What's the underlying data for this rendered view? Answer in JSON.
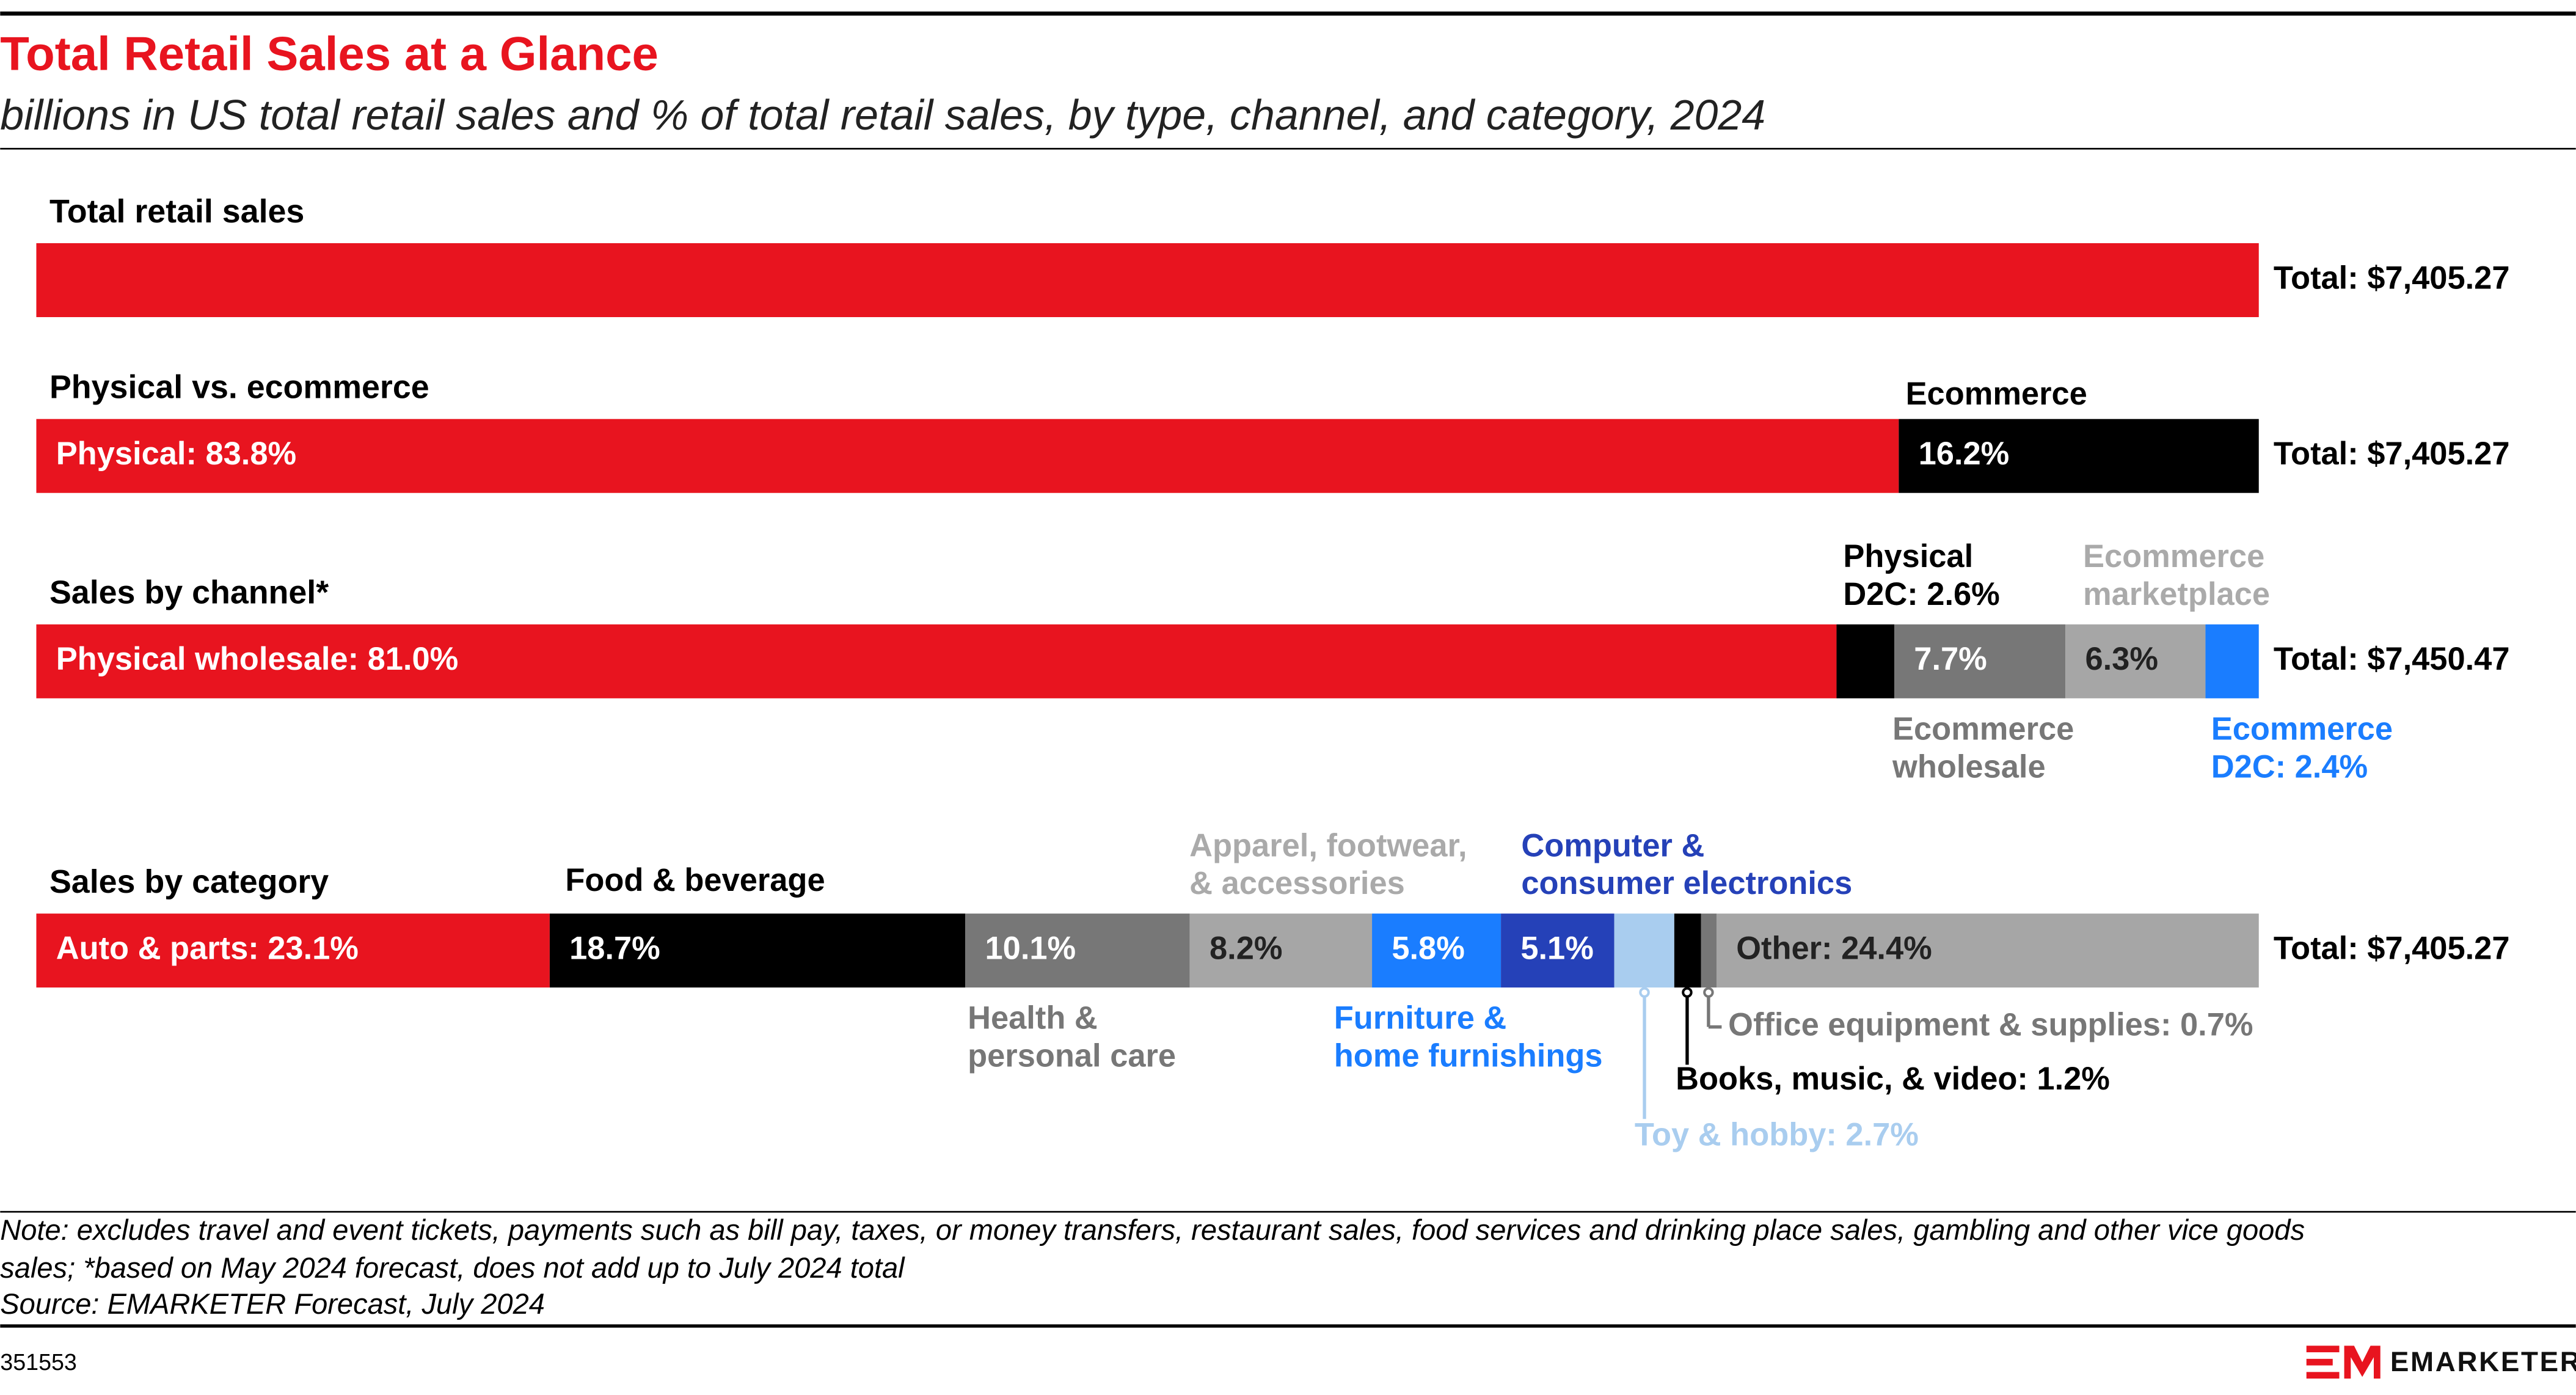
{
  "title": "Total Retail Sales at a Glance",
  "subtitle": "billions in US total retail sales and % of total retail sales, by type, channel, and category, 2024",
  "chart_data": [
    {
      "type": "stacked_bar",
      "title": "Total retail sales",
      "xlim": [
        0,
        100
      ],
      "total": {
        "value": 7405.27,
        "label": "Total: $7,405.27"
      },
      "series": [
        {
          "color": "#e8141f",
          "values": [
            100
          ]
        }
      ]
    },
    {
      "type": "stacked_bar",
      "title": "Physical vs. ecommerce",
      "xlim": [
        0,
        100
      ],
      "total": {
        "value": 7405.27,
        "label": "Total: $7,405.27"
      },
      "series": [
        {
          "color": "#e8141f",
          "values": [
            83.8
          ],
          "value_labels": [
            "Physical: 83.8%"
          ]
        },
        {
          "name": [
            "Ecommerce"
          ],
          "color": "#000000",
          "values": [
            16.2
          ],
          "value_labels": [
            "16.2%"
          ]
        }
      ]
    },
    {
      "type": "stacked_bar",
      "title": "Sales by channel*",
      "xlim": [
        0,
        100
      ],
      "total": {
        "value": 7450.47,
        "label": "Total: $7,450.47"
      },
      "series": [
        {
          "color": "#e8141f",
          "values": [
            81.0
          ],
          "value_labels": [
            "Physical wholesale: 81.0%"
          ]
        },
        {
          "color": "#000000",
          "values": [
            2.6
          ],
          "value_labels": [
            [
              "Physical",
              "D2C: 2.6%"
            ]
          ]
        },
        {
          "name": [
            "Ecommerce",
            "wholesale"
          ],
          "color": "#777777",
          "values": [
            7.7
          ],
          "value_labels": [
            "7.7%"
          ]
        },
        {
          "name": [
            "Ecommerce",
            "marketplace"
          ],
          "color": "#a6a6a6",
          "values": [
            6.3
          ],
          "value_labels": [
            "6.3%"
          ]
        },
        {
          "color": "#1a7dff",
          "values": [
            2.4
          ],
          "value_labels": [
            [
              "Ecommerce",
              "D2C: 2.4%"
            ]
          ]
        }
      ]
    },
    {
      "type": "stacked_bar",
      "title": "Sales by category",
      "xlim": [
        0,
        100
      ],
      "total": {
        "value": 7405.27,
        "label": "Total: $7,405.27"
      },
      "series": [
        {
          "color": "#e8141f",
          "values": [
            23.1
          ],
          "value_labels": [
            "Auto & parts: 23.1%"
          ]
        },
        {
          "name": [
            "Food & beverage"
          ],
          "color": "#000000",
          "values": [
            18.7
          ],
          "value_labels": [
            "18.7%"
          ]
        },
        {
          "name": [
            "Health &",
            "personal care"
          ],
          "color": "#777777",
          "values": [
            10.1
          ],
          "value_labels": [
            "10.1%"
          ]
        },
        {
          "name": [
            "Apparel, footwear,",
            "& accessories"
          ],
          "color": "#a6a6a6",
          "values": [
            8.2
          ],
          "value_labels": [
            "8.2%"
          ]
        },
        {
          "name": [
            "Furniture &",
            "home furnishings"
          ],
          "color": "#1a7dff",
          "values": [
            5.8
          ],
          "value_labels": [
            "5.8%"
          ]
        },
        {
          "name": [
            "Computer &",
            "consumer electronics"
          ],
          "color": "#2541b8",
          "values": [
            5.1
          ],
          "value_labels": [
            "5.1%"
          ]
        },
        {
          "color": "#a9cdef",
          "values": [
            2.7
          ],
          "value_labels": [
            "Toy & hobby: 2.7%"
          ]
        },
        {
          "color": "#000000",
          "values": [
            1.2
          ],
          "value_labels": [
            "Books, music, & video: 1.2%"
          ]
        },
        {
          "color": "#777777",
          "values": [
            0.7
          ],
          "value_labels": [
            "Office equipment & supplies: 0.7%"
          ]
        },
        {
          "color": "#a6a6a6",
          "values": [
            24.4
          ],
          "value_labels": [
            "Other: 24.4%"
          ]
        }
      ]
    }
  ],
  "footer": {
    "note": [
      "Note: excludes travel and event tickets, payments such as bill pay, taxes, or money transfers, restaurant sales, food services and drinking place sales, gambling and other vice goods",
      "sales; *based on May 2024 forecast, does not add up to July 2024 total"
    ],
    "source": "Source: EMARKETER Forecast, July 2024",
    "id": "351553",
    "brand": "EMARKETER"
  }
}
